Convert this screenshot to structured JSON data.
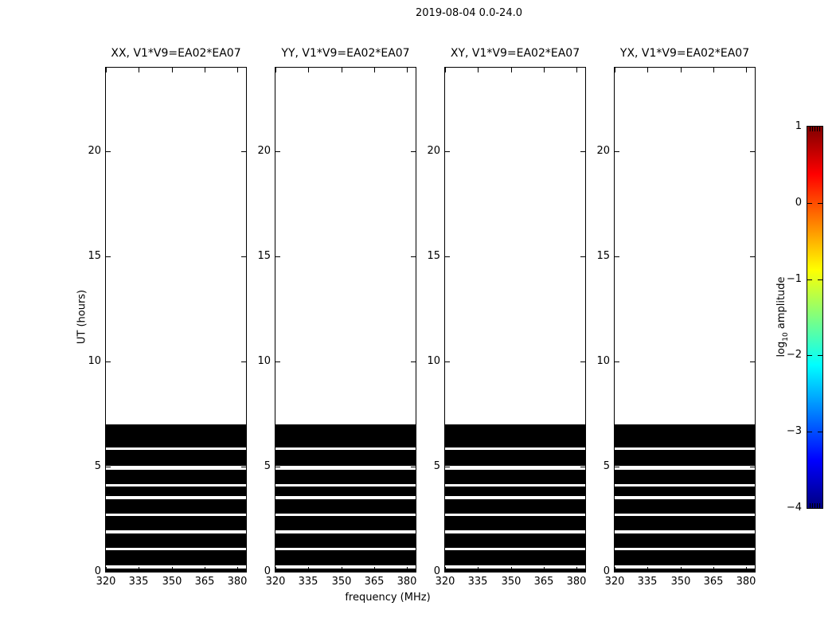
{
  "figure": {
    "title": "2019-08-04 0.0-24.0"
  },
  "axes": {
    "xlabel": "frequency (MHz)",
    "ylabel": "UT (hours)"
  },
  "colorbar": {
    "label_prefix": "log",
    "label_sub": "10",
    "label_suffix": " amplitude",
    "tick_labels": [
      "1",
      "0",
      "−1",
      "−2",
      "−3",
      "−4"
    ]
  },
  "chart_data": {
    "type": "heatmap",
    "title": "2019-08-04 0.0-24.0",
    "subplot_titles": [
      "XX, V1*V9=EA02*EA07",
      "YY, V1*V9=EA02*EA07",
      "XY, V1*V9=EA02*EA07",
      "YX, V1*V9=EA02*EA07"
    ],
    "xlabel": "frequency (MHz)",
    "ylabel": "UT (hours)",
    "xlim": [
      320,
      384
    ],
    "ylim": [
      0,
      24
    ],
    "x_ticks": [
      320,
      335,
      350,
      365,
      380
    ],
    "y_ticks": [
      0,
      5,
      10,
      15,
      20
    ],
    "grid": false,
    "scan_intervals_ut_hours": [
      [
        0.0,
        0.16
      ],
      [
        0.31,
        1.01
      ],
      [
        1.14,
        1.83
      ],
      [
        1.96,
        2.65
      ],
      [
        2.77,
        3.47
      ],
      [
        3.6,
        4.04
      ],
      [
        4.16,
        4.86
      ],
      [
        5.05,
        5.8
      ],
      [
        5.93,
        7.0
      ]
    ],
    "scan_note": "black horizontal bands (data present across full 320-384 MHz band) during scans between 0 and 7 h UT; no data 7-24 h; identical in all four polarization panels",
    "colorbar": {
      "label": "log10 amplitude",
      "range": [
        -4,
        1
      ],
      "ticks": [
        1,
        0,
        -1,
        -2,
        -3,
        -4
      ],
      "colormap": "jet",
      "orientation": "vertical"
    }
  }
}
